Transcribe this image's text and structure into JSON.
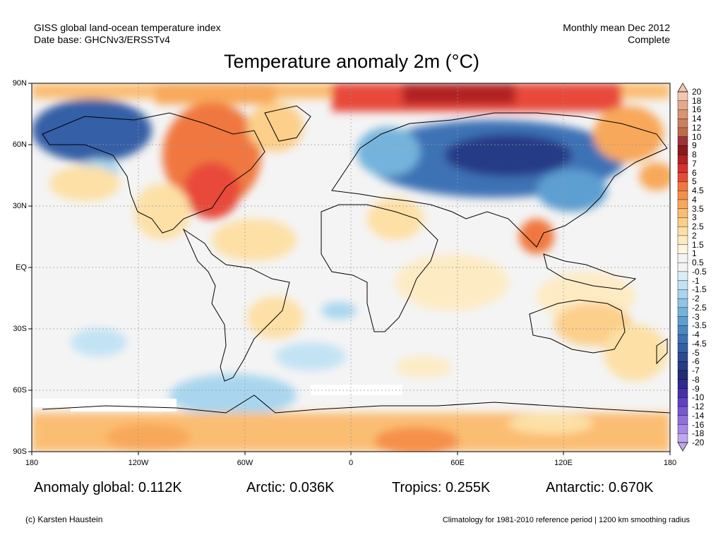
{
  "header": {
    "line1_left": "GISS global land-ocean temperature index",
    "line2_left": "Date base: GHCNv3/ERSSTv4",
    "line1_right": "Monthly mean Dec 2012",
    "line2_right": "Complete"
  },
  "title": "Temperature anomaly 2m (°C)",
  "lat_labels": [
    "90N",
    "60N",
    "30N",
    "EQ",
    "30S",
    "60S",
    "90S"
  ],
  "lon_labels": [
    "180",
    "120W",
    "60W",
    "0",
    "60E",
    "120E",
    "180"
  ],
  "stats": {
    "global": "Anomaly global: 0.112K",
    "arctic": "Arctic: 0.036K",
    "tropics": "Tropics: 0.255K",
    "antarctic": "Antarctic: 0.670K"
  },
  "footer": {
    "credit": "(c) Karsten Haustein",
    "climatology": "Climatology for 1981-2010 reference period | 1200 km smoothing radius"
  },
  "colorbar": {
    "labels": [
      "20",
      "18",
      "16",
      "14",
      "12",
      "10",
      "9",
      "8",
      "7",
      "6",
      "5",
      "4.5",
      "4",
      "3.5",
      "3",
      "2.5",
      "2",
      "1.5",
      "1",
      "0.5",
      "-0.5",
      "-1",
      "-1.5",
      "-2",
      "-2.5",
      "-3",
      "-3.5",
      "-4",
      "-4.5",
      "-5",
      "-6",
      "-7",
      "-8",
      "-9",
      "-10",
      "-12",
      "-14",
      "-16",
      "-18",
      "-20"
    ],
    "colors": [
      "#f2c7b0",
      "#e5a88c",
      "#d99472",
      "#cc7f5e",
      "#bf6b4a",
      "#a0303a",
      "#8b1a1a",
      "#b22222",
      "#d63030",
      "#e84a3a",
      "#f07840",
      "#f5904a",
      "#f8a85a",
      "#fbbd72",
      "#fccf8a",
      "#fde0a6",
      "#fdebc4",
      "#fdf5e0",
      "#f4f4f4",
      "#f4f4f4",
      "#dbeef8",
      "#c2e3f4",
      "#a9d6ee",
      "#8ec6e6",
      "#74b3dc",
      "#5d9fd1",
      "#4b88c3",
      "#3e72b5",
      "#345ea6",
      "#2c4a94",
      "#263a85",
      "#232c75",
      "#2e2a8f",
      "#4830a8",
      "#6040c0",
      "#7858d0",
      "#9070dc",
      "#a888e6",
      "#c0a8f0"
    ]
  },
  "map_colors": {
    "neutral": "#f4f4f4",
    "warm_light": "#fde0a6",
    "warm_mid": "#f8b070",
    "warm_strong": "#f07840",
    "hot": "#d63030",
    "cool_light": "#c2e3f4",
    "cool_mid": "#74b3dc",
    "cold": "#3e72b5",
    "very_cold": "#263a85",
    "no_data": "#ffffff"
  }
}
